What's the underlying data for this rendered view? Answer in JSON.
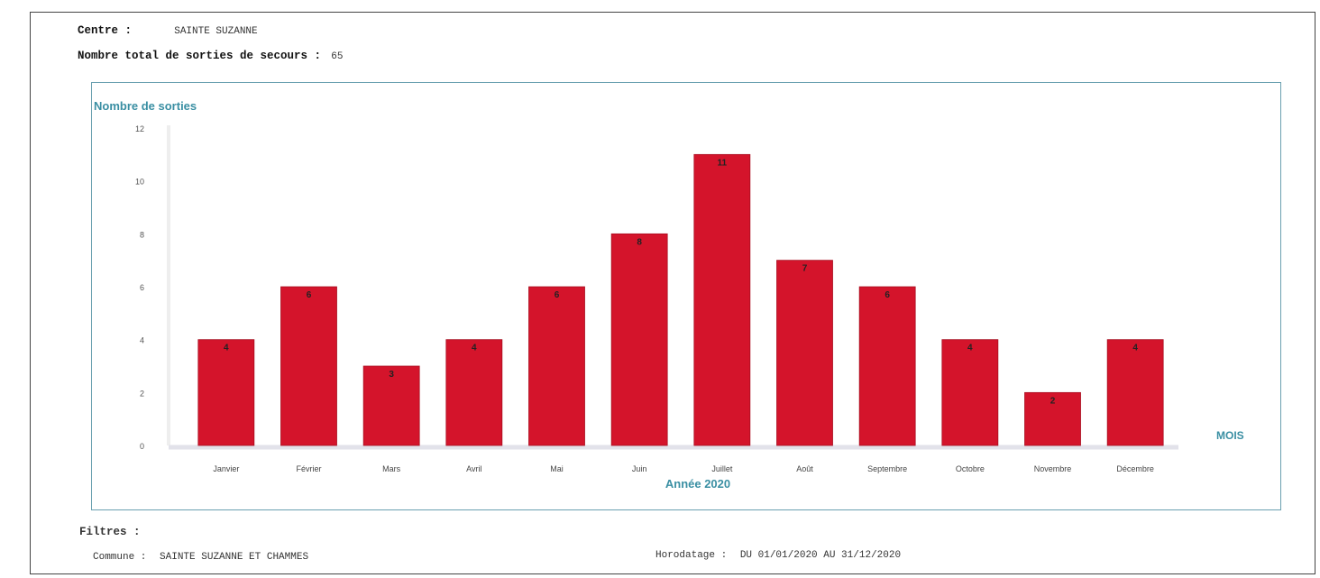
{
  "header": {
    "centre_label": "Centre :",
    "centre_value": "SAINTE SUZANNE",
    "total_label": "Nombre total de sorties de secours :",
    "total_value": "65"
  },
  "chart_data": {
    "type": "bar",
    "ylabel": "Nombre de sorties",
    "xlabel": "Année 2020",
    "axis_side_label": "MOIS",
    "ylim": [
      0,
      12
    ],
    "yticks": [
      "0",
      "2",
      "4",
      "6",
      "8",
      "10",
      "12"
    ],
    "categories": [
      "Janvier",
      "Février",
      "Mars",
      "Avril",
      "Mai",
      "Juin",
      "Juillet",
      "Août",
      "Septembre",
      "Octobre",
      "Novembre",
      "Décembre"
    ],
    "values": [
      4,
      6,
      3,
      4,
      6,
      8,
      11,
      7,
      6,
      4,
      2,
      4
    ],
    "value_labels": [
      "4",
      "6",
      "3",
      "4",
      "6",
      "8",
      "11",
      "7",
      "6",
      "4",
      "2",
      "4"
    ],
    "bar_color": "#d4142b",
    "axis_text_color": "#3a8fa3"
  },
  "footer": {
    "filtres_label": "Filtres :",
    "commune_label": "Commune :",
    "commune_value": "SAINTE SUZANNE ET CHAMMES",
    "horodatage_label": "Horodatage :",
    "horodatage_value": "DU 01/01/2020 AU 31/12/2020"
  }
}
